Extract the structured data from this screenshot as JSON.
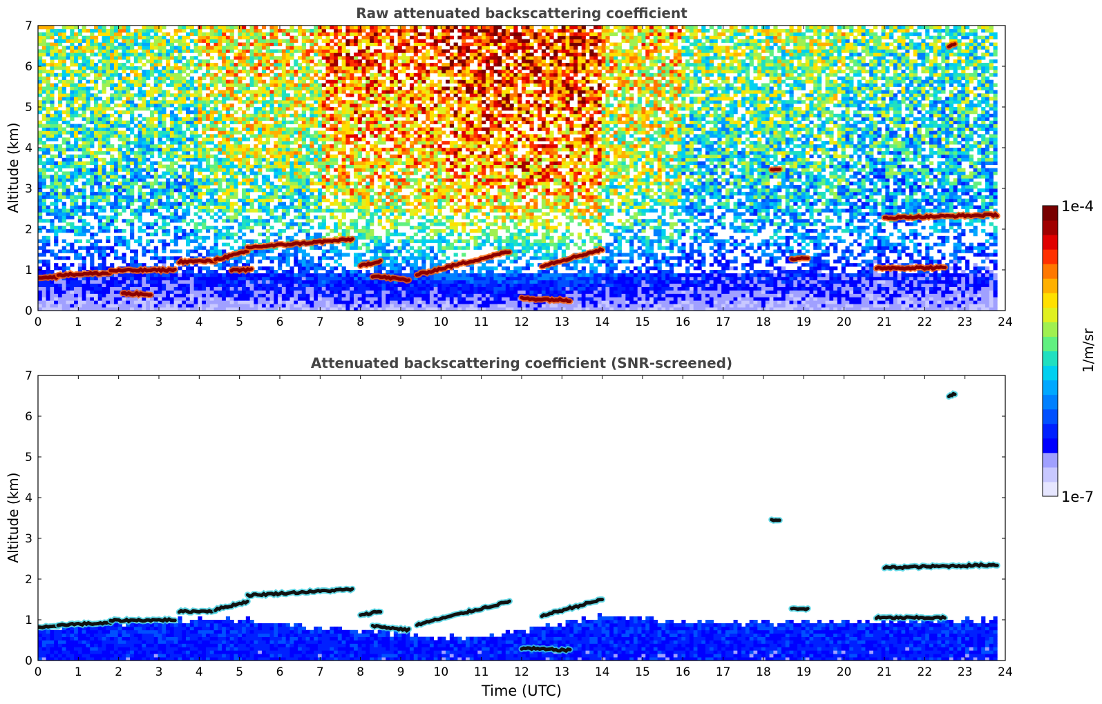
{
  "chart_data": [
    {
      "type": "heatmap",
      "title": "Raw attenuated backscattering coefficient",
      "xlabel": "",
      "ylabel": "Altitude (km)",
      "xlim": [
        0,
        24
      ],
      "ylim": [
        0,
        7
      ],
      "x_ticks": [
        "0",
        "1",
        "2",
        "3",
        "4",
        "5",
        "6",
        "7",
        "8",
        "9",
        "10",
        "11",
        "12",
        "13",
        "14",
        "15",
        "16",
        "17",
        "18",
        "19",
        "20",
        "21",
        "22",
        "23",
        "24"
      ],
      "y_ticks": [
        "0",
        "1",
        "2",
        "3",
        "4",
        "5",
        "6",
        "7"
      ],
      "data_end_time": 23.8,
      "background_profile": [
        {
          "alt": 0.0,
          "level": 0.1
        },
        {
          "alt": 1.0,
          "level": 0.22
        },
        {
          "alt": 2.0,
          "level": 0.38
        },
        {
          "alt": 4.0,
          "level": 0.48
        },
        {
          "alt": 7.0,
          "level": 0.58
        }
      ],
      "noisy_periods": [
        {
          "t0": 4.0,
          "t1": 7.0,
          "boost": 0.1
        },
        {
          "t0": 7.0,
          "t1": 10.0,
          "boost": 0.22
        },
        {
          "t0": 10.0,
          "t1": 14.0,
          "boost": 0.28
        },
        {
          "t0": 14.0,
          "t1": 16.0,
          "boost": 0.12
        },
        {
          "t0": 20.0,
          "t1": 23.8,
          "boost": -0.05
        }
      ],
      "cloud_layers": [
        {
          "t0": 0.0,
          "t1": 0.5,
          "alt0": 0.82,
          "alt1": 0.82
        },
        {
          "t0": 0.5,
          "t1": 1.8,
          "alt0": 0.88,
          "alt1": 0.92
        },
        {
          "t0": 1.8,
          "t1": 3.4,
          "alt0": 0.98,
          "alt1": 1.0
        },
        {
          "t0": 3.5,
          "t1": 4.4,
          "alt0": 1.2,
          "alt1": 1.22
        },
        {
          "t0": 4.4,
          "t1": 5.2,
          "alt0": 1.25,
          "alt1": 1.45
        },
        {
          "t0": 5.2,
          "t1": 7.8,
          "alt0": 1.55,
          "alt1": 1.75
        },
        {
          "t0": 4.8,
          "t1": 5.3,
          "alt0": 1.0,
          "alt1": 1.0
        },
        {
          "t0": 8.0,
          "t1": 8.5,
          "alt0": 1.1,
          "alt1": 1.22
        },
        {
          "t0": 8.3,
          "t1": 9.2,
          "alt0": 0.85,
          "alt1": 0.75
        },
        {
          "t0": 9.4,
          "t1": 11.7,
          "alt0": 0.88,
          "alt1": 1.45
        },
        {
          "t0": 12.0,
          "t1": 13.2,
          "alt0": 0.3,
          "alt1": 0.25
        },
        {
          "t0": 12.5,
          "t1": 14.0,
          "alt0": 1.1,
          "alt1": 1.5
        },
        {
          "t0": 2.1,
          "t1": 2.8,
          "alt0": 0.42,
          "alt1": 0.4
        },
        {
          "t0": 18.7,
          "t1": 19.1,
          "alt0": 1.27,
          "alt1": 1.27
        },
        {
          "t0": 20.8,
          "t1": 22.5,
          "alt0": 1.05,
          "alt1": 1.05
        },
        {
          "t0": 21.0,
          "t1": 23.8,
          "alt0": 2.28,
          "alt1": 2.35
        },
        {
          "t0": 22.6,
          "t1": 22.75,
          "alt0": 6.5,
          "alt1": 6.55
        },
        {
          "t0": 18.2,
          "t1": 18.4,
          "alt0": 3.45,
          "alt1": 3.45
        }
      ]
    },
    {
      "type": "heatmap",
      "title": "Attenuated backscattering coefficient (SNR-screened)",
      "xlabel": "Time (UTC)",
      "ylabel": "Altitude (km)",
      "xlim": [
        0,
        24
      ],
      "ylim": [
        0,
        7
      ],
      "x_ticks": [
        "0",
        "1",
        "2",
        "3",
        "4",
        "5",
        "6",
        "7",
        "8",
        "9",
        "10",
        "11",
        "12",
        "13",
        "14",
        "15",
        "16",
        "17",
        "18",
        "19",
        "20",
        "21",
        "22",
        "23",
        "24"
      ],
      "y_ticks": [
        "0",
        "1",
        "2",
        "3",
        "4",
        "5",
        "6",
        "7"
      ],
      "data_end_time": 23.8,
      "valid_ceiling": [
        {
          "t": 0.0,
          "alt": 0.8
        },
        {
          "t": 3.5,
          "alt": 1.0
        },
        {
          "t": 5.0,
          "alt": 1.0
        },
        {
          "t": 8.0,
          "alt": 0.7
        },
        {
          "t": 11.0,
          "alt": 0.55
        },
        {
          "t": 14.0,
          "alt": 1.1
        },
        {
          "t": 17.0,
          "alt": 0.9
        },
        {
          "t": 20.0,
          "alt": 0.95
        },
        {
          "t": 23.8,
          "alt": 1.0
        }
      ],
      "cloud_layers": [
        {
          "t0": 0.0,
          "t1": 0.5,
          "alt0": 0.82,
          "alt1": 0.82
        },
        {
          "t0": 0.5,
          "t1": 1.8,
          "alt0": 0.88,
          "alt1": 0.92
        },
        {
          "t0": 1.8,
          "t1": 3.4,
          "alt0": 0.98,
          "alt1": 1.0
        },
        {
          "t0": 3.5,
          "t1": 4.4,
          "alt0": 1.2,
          "alt1": 1.22
        },
        {
          "t0": 4.4,
          "t1": 5.2,
          "alt0": 1.25,
          "alt1": 1.45
        },
        {
          "t0": 5.2,
          "t1": 7.8,
          "alt0": 1.6,
          "alt1": 1.75
        },
        {
          "t0": 8.0,
          "t1": 8.5,
          "alt0": 1.1,
          "alt1": 1.22
        },
        {
          "t0": 8.3,
          "t1": 9.2,
          "alt0": 0.85,
          "alt1": 0.75
        },
        {
          "t0": 9.4,
          "t1": 11.7,
          "alt0": 0.88,
          "alt1": 1.45
        },
        {
          "t0": 12.0,
          "t1": 13.2,
          "alt0": 0.3,
          "alt1": 0.25
        },
        {
          "t0": 12.5,
          "t1": 14.0,
          "alt0": 1.1,
          "alt1": 1.5
        },
        {
          "t0": 18.7,
          "t1": 19.1,
          "alt0": 1.27,
          "alt1": 1.27
        },
        {
          "t0": 20.8,
          "t1": 22.5,
          "alt0": 1.05,
          "alt1": 1.05
        },
        {
          "t0": 21.0,
          "t1": 23.8,
          "alt0": 2.28,
          "alt1": 2.35
        },
        {
          "t0": 22.6,
          "t1": 22.75,
          "alt0": 6.5,
          "alt1": 6.55
        },
        {
          "t0": 18.2,
          "t1": 18.4,
          "alt0": 3.45,
          "alt1": 3.45
        }
      ]
    }
  ],
  "colorbar": {
    "max_label": "1e-4",
    "min_label": "1e-7",
    "label": "1/m/sr",
    "colors": [
      "#e6e6ff",
      "#c8c8ff",
      "#a0a0ff",
      "#0000ff",
      "#0020ff",
      "#0050ff",
      "#0080ff",
      "#00a8ff",
      "#00d0f0",
      "#20e0c0",
      "#60f080",
      "#a0f050",
      "#e0f020",
      "#ffe000",
      "#ffb000",
      "#ff7800",
      "#ff3000",
      "#e00000",
      "#a00000",
      "#780000"
    ]
  }
}
